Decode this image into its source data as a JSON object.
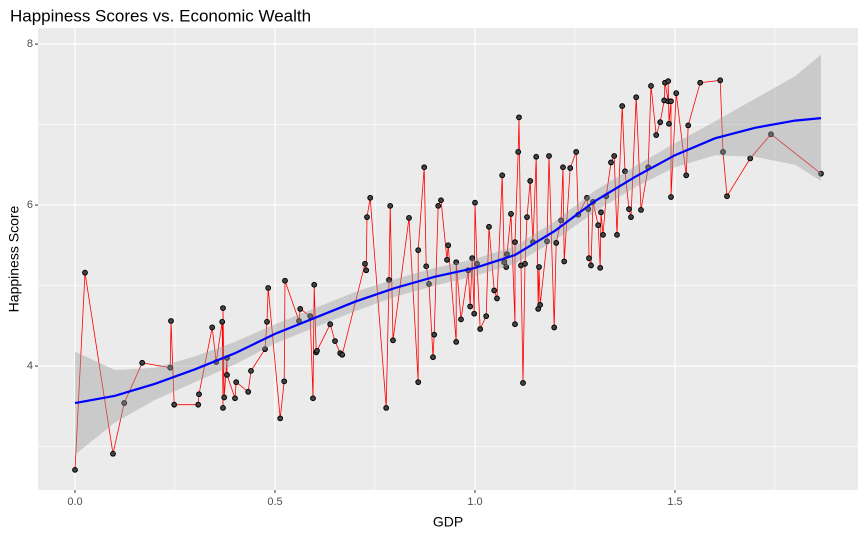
{
  "chart_data": {
    "type": "scatter",
    "title": "Happiness Scores vs. Economic Wealth",
    "x_label": "GDP",
    "y_label": "Happiness Score",
    "x": [
      0.0,
      0.025,
      0.095,
      0.123,
      0.168,
      0.238,
      0.24,
      0.248,
      0.308,
      0.31,
      0.343,
      0.353,
      0.368,
      0.37,
      0.37,
      0.373,
      0.38,
      0.38,
      0.4,
      0.403,
      0.433,
      0.44,
      0.475,
      0.48,
      0.483,
      0.513,
      0.523,
      0.525,
      0.56,
      0.563,
      0.588,
      0.595,
      0.598,
      0.603,
      0.605,
      0.638,
      0.65,
      0.663,
      0.668,
      0.725,
      0.728,
      0.73,
      0.738,
      0.778,
      0.785,
      0.788,
      0.795,
      0.835,
      0.858,
      0.858,
      0.873,
      0.878,
      0.885,
      0.895,
      0.898,
      0.908,
      0.915,
      0.93,
      0.933,
      0.953,
      0.953,
      0.965,
      0.983,
      0.988,
      0.993,
      0.998,
      1.0,
      1.005,
      1.013,
      1.028,
      1.035,
      1.048,
      1.055,
      1.068,
      1.073,
      1.078,
      1.08,
      1.09,
      1.1,
      1.1,
      1.108,
      1.11,
      1.115,
      1.12,
      1.125,
      1.13,
      1.138,
      1.145,
      1.153,
      1.158,
      1.16,
      1.163,
      1.18,
      1.185,
      1.198,
      1.203,
      1.215,
      1.22,
      1.223,
      1.238,
      1.253,
      1.258,
      1.28,
      1.283,
      1.285,
      1.29,
      1.295,
      1.308,
      1.313,
      1.315,
      1.32,
      1.328,
      1.34,
      1.348,
      1.355,
      1.368,
      1.375,
      1.385,
      1.39,
      1.403,
      1.415,
      1.433,
      1.44,
      1.453,
      1.463,
      1.473,
      1.475,
      1.483,
      1.483,
      1.485,
      1.49,
      1.49,
      1.503,
      1.528,
      1.533,
      1.563,
      1.613,
      1.62,
      1.63,
      1.688,
      1.74,
      1.865
    ],
    "values": [
      2.71,
      5.16,
      2.91,
      3.54,
      4.04,
      3.98,
      4.56,
      3.52,
      3.52,
      3.65,
      4.48,
      4.05,
      4.55,
      3.48,
      4.72,
      3.61,
      4.1,
      3.89,
      3.6,
      3.8,
      3.68,
      3.94,
      4.21,
      4.55,
      4.97,
      3.35,
      3.81,
      5.06,
      4.56,
      4.71,
      4.62,
      3.6,
      5.01,
      4.17,
      4.19,
      4.52,
      4.31,
      4.16,
      4.14,
      5.27,
      5.19,
      5.85,
      6.09,
      3.48,
      5.07,
      5.99,
      4.32,
      5.84,
      3.8,
      5.44,
      6.47,
      5.24,
      5.02,
      4.11,
      4.39,
      5.99,
      6.06,
      5.32,
      5.5,
      4.3,
      5.29,
      4.58,
      5.19,
      4.74,
      5.34,
      4.65,
      6.03,
      5.27,
      4.46,
      4.62,
      5.73,
      4.94,
      4.84,
      6.37,
      5.29,
      5.23,
      5.39,
      5.89,
      4.52,
      5.54,
      6.66,
      7.09,
      5.25,
      3.79,
      5.27,
      5.85,
      6.3,
      5.54,
      6.6,
      4.71,
      5.23,
      4.76,
      5.55,
      6.61,
      4.48,
      5.53,
      5.81,
      6.47,
      5.3,
      6.46,
      6.66,
      5.88,
      6.09,
      5.95,
      5.34,
      5.25,
      6.04,
      5.75,
      5.22,
      5.91,
      5.63,
      6.11,
      6.53,
      6.61,
      5.63,
      7.23,
      6.42,
      5.95,
      5.85,
      7.34,
      5.94,
      6.47,
      7.48,
      6.87,
      7.03,
      7.3,
      7.52,
      7.29,
      7.54,
      7.01,
      7.29,
      6.1,
      7.39,
      6.37,
      6.99,
      7.52,
      7.55,
      6.66,
      6.11,
      6.58,
      6.88,
      6.39
    ],
    "point_color": "#000000",
    "line_color": "#ff0000",
    "smooth": {
      "color": "#0000ff",
      "band_color": "#999999",
      "x": [
        0,
        0.1,
        0.2,
        0.3,
        0.4,
        0.5,
        0.6,
        0.7,
        0.8,
        0.9,
        1.0,
        1.1,
        1.2,
        1.3,
        1.4,
        1.5,
        1.6,
        1.7,
        1.8,
        1.865
      ],
      "values": [
        3.54,
        3.63,
        3.78,
        3.96,
        4.16,
        4.4,
        4.6,
        4.8,
        4.97,
        5.11,
        5.22,
        5.38,
        5.68,
        6.05,
        6.35,
        6.62,
        6.83,
        6.96,
        7.05,
        7.08
      ],
      "lower": [
        2.9,
        3.3,
        3.58,
        3.8,
        4.02,
        4.28,
        4.48,
        4.68,
        4.86,
        5.0,
        5.12,
        5.27,
        5.56,
        5.92,
        6.22,
        6.47,
        6.62,
        6.6,
        6.5,
        6.3
      ],
      "upper": [
        4.18,
        3.95,
        3.98,
        4.12,
        4.3,
        4.52,
        4.72,
        4.92,
        5.08,
        5.22,
        5.33,
        5.49,
        5.8,
        6.18,
        6.48,
        6.77,
        7.04,
        7.32,
        7.6,
        7.87
      ]
    },
    "xlim": [
      -0.0925,
      1.9575
    ],
    "ylim": [
      2.46,
      8.2
    ],
    "xticks": [
      {
        "value": 0,
        "label": "0.0"
      },
      0.5,
      {
        "value": 1,
        "label": "1.0"
      },
      1.5
    ],
    "yticks": [
      4,
      6,
      8
    ],
    "grid": true
  }
}
